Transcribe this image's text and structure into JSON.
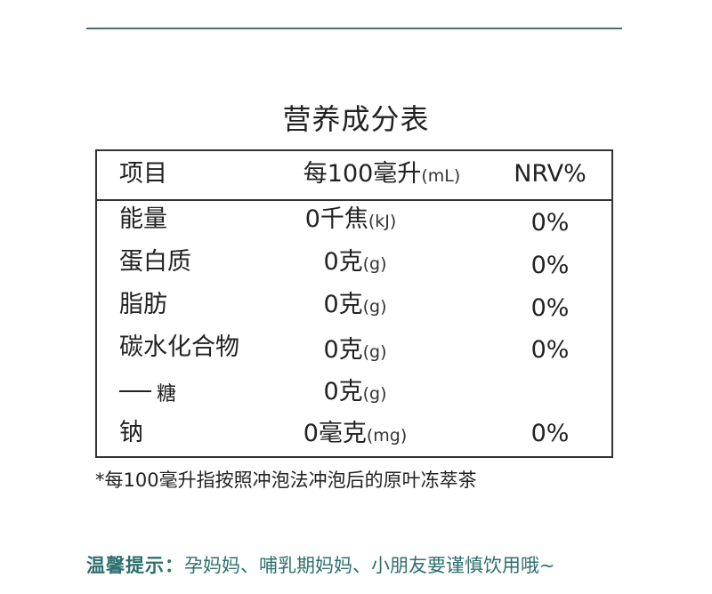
{
  "title": "营养成分表",
  "header": {
    "item": "项目",
    "amount_label": "每100毫升",
    "amount_unit": "(mL)",
    "nrv": "NRV%"
  },
  "rows": [
    {
      "name": "能量",
      "value": "0千焦",
      "unit": "(kJ)",
      "nrv": "0%"
    },
    {
      "name": "蛋白质",
      "value": "0克",
      "unit": "(g)",
      "nrv": "0%"
    },
    {
      "name": "脂肪",
      "value": "0克",
      "unit": "(g)",
      "nrv": "0%"
    },
    {
      "name": "碳水化合物",
      "value": "0克",
      "unit": "(g)",
      "nrv": "0%"
    },
    {
      "name": "糖",
      "value": "0克",
      "unit": "(g)",
      "nrv": ""
    },
    {
      "name": "钠",
      "value": "0毫克",
      "unit": "(mg)",
      "nrv": "0%"
    }
  ],
  "footnote": "*每100毫升指按照冲泡法冲泡后的原叶冻萃茶",
  "tip": {
    "label": "温馨提示：",
    "text": "孕妈妈、哺乳期妈妈、小朋友要谨慎饮用哦~"
  },
  "colors": {
    "rule": "#4a6e72",
    "tip": "#2f6f6f",
    "text": "#222222",
    "border": "#333333"
  }
}
